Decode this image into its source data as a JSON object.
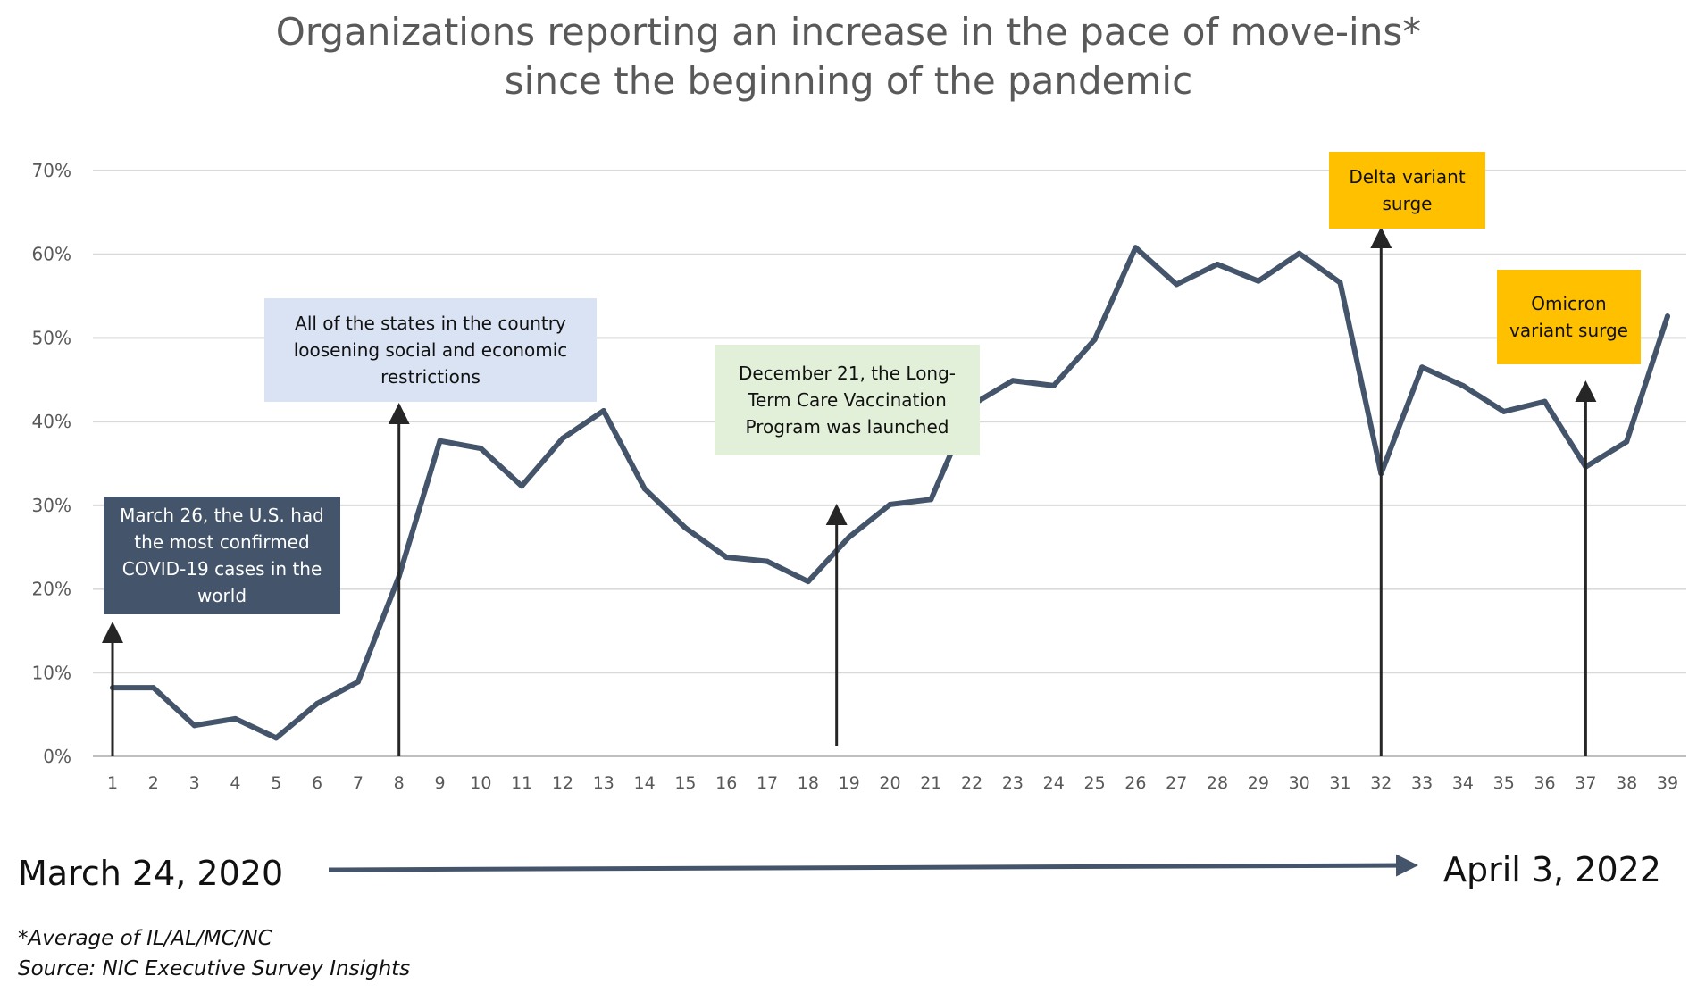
{
  "chart_data": {
    "type": "line",
    "title": "Organizations reporting an increase in the pace of move-ins*",
    "subtitle": "since the beginning of the pandemic",
    "xlabel": "",
    "ylabel": "",
    "ylim": [
      0,
      70
    ],
    "y_ticks": [
      "0%",
      "10%",
      "20%",
      "30%",
      "40%",
      "50%",
      "60%",
      "70%"
    ],
    "grid": true,
    "line_color": "#44546a",
    "categories": [
      "1",
      "2",
      "3",
      "4",
      "5",
      "6",
      "7",
      "8",
      "9",
      "10",
      "11",
      "12",
      "13",
      "14",
      "15",
      "16",
      "17",
      "18",
      "19",
      "20",
      "21",
      "22",
      "23",
      "24",
      "25",
      "26",
      "27",
      "28",
      "29",
      "30",
      "31",
      "32",
      "33",
      "34",
      "35",
      "36",
      "37",
      "38",
      "39"
    ],
    "series": [
      {
        "name": "Organizations reporting an increase in the pace of move-ins",
        "values": [
          8.2,
          8.2,
          3.7,
          4.5,
          2.2,
          6.3,
          8.9,
          21.5,
          37.7,
          36.8,
          32.3,
          38.0,
          41.3,
          32.0,
          27.3,
          23.8,
          23.3,
          20.9,
          26.2,
          30.1,
          30.7,
          42.0,
          44.9,
          44.3,
          49.8,
          60.8,
          56.4,
          58.8,
          56.8,
          60.1,
          56.6,
          33.8,
          46.5,
          44.3,
          41.2,
          42.4,
          34.6,
          37.6,
          52.6
        ]
      }
    ],
    "annotations": [
      {
        "text": "March 26, the U.S. had the most confirmed COVID-19 cases in the world",
        "x": "1",
        "style": "dark"
      },
      {
        "text": "All of the states in the country loosening social and economic restrictions",
        "x": "8",
        "style": "blue"
      },
      {
        "text": "December 21, the Long-Term Care Vaccination Program was launched",
        "x": "19",
        "style": "green"
      },
      {
        "text": "Delta variant surge",
        "x": "32",
        "style": "amber"
      },
      {
        "text": "Omicron variant surge",
        "x": "37",
        "style": "amber"
      }
    ]
  },
  "timeline": {
    "start_label": "March 24, 2020",
    "end_label": "April 3, 2022"
  },
  "footnotes": {
    "note": "*Average of IL/AL/MC/NC",
    "source": "Source: NIC Executive Survey Insights"
  },
  "colors": {
    "line": "#44546a",
    "arrow": "#262626",
    "grid": "#d9d9d9",
    "annot_dark": "#44546a",
    "annot_blue": "#dae3f3",
    "annot_green": "#e2f0d9",
    "annot_amber": "#ffc000"
  }
}
